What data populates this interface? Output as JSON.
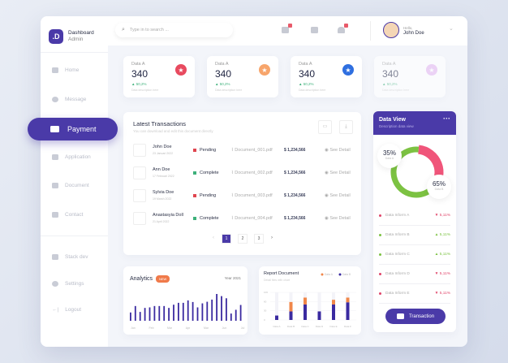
{
  "sidebar": {
    "logo": ".D",
    "title": "Dashboard",
    "subtitle": "Admin",
    "items": [
      {
        "label": "Home",
        "icon": "home-icon"
      },
      {
        "label": "Message",
        "icon": "message-icon"
      },
      {
        "label": "Payment",
        "icon": "payment-icon",
        "active": true
      },
      {
        "label": "Application",
        "icon": "grid-icon"
      },
      {
        "label": "Document",
        "icon": "document-icon"
      },
      {
        "label": "Contact",
        "icon": "contact-icon"
      }
    ],
    "bottom": [
      {
        "label": "Stack dev",
        "icon": "layers-icon"
      },
      {
        "label": "Settings",
        "icon": "gear-icon"
      },
      {
        "label": "Logout",
        "icon": "logout-icon"
      }
    ]
  },
  "header": {
    "search_placeholder": "Type in to search ...",
    "greeting": "Hello,",
    "user": "John Doe"
  },
  "stats": [
    {
      "label": "Data A",
      "value": "340",
      "change": "▲ 50,2%",
      "desc": "Data description here",
      "color": "#e84a5f"
    },
    {
      "label": "Data A",
      "value": "340",
      "change": "▲ 50,2%",
      "desc": "Data description here",
      "color": "#f7a56b"
    },
    {
      "label": "Data A",
      "value": "340",
      "change": "▲ 50,2%",
      "desc": "Data description here",
      "color": "#2f6fe0"
    },
    {
      "label": "Data A",
      "value": "340",
      "change": "▲ 50,2%",
      "desc": "Data description here",
      "color": "#e3b5f0"
    }
  ],
  "transactions": {
    "title": "Latest Transactions",
    "subtitle": "You can download and edit this document directly",
    "rows": [
      {
        "name": "John Doe",
        "date": "23 Januari 2022",
        "status": "Pending",
        "doc": "Document_001.pdf",
        "amount": "$ 1,234,566",
        "action": "See Detail"
      },
      {
        "name": "Ann Doe",
        "date": "17 Februari 2022",
        "status": "Complete",
        "doc": "Document_002.pdf",
        "amount": "$ 1,234,566",
        "action": "See Detail"
      },
      {
        "name": "Sylvia Doe",
        "date": "19 March 2022",
        "status": "Pending",
        "doc": "Document_003.pdf",
        "amount": "$ 1,234,566",
        "action": "See Detail"
      },
      {
        "name": "Anastasyia Doll",
        "date": "21 April 2022",
        "status": "Complete",
        "doc": "Document_004.pdf",
        "amount": "$ 1,234,566",
        "action": "See Detail"
      }
    ],
    "pages": [
      "1",
      "2",
      "3"
    ],
    "current_page": "1"
  },
  "status_colors": {
    "Pending": "#e0454f",
    "Complete": "#3db07a"
  },
  "data_view": {
    "title": "Data View",
    "subtitle": "Description data view",
    "slices": [
      {
        "label": "Data A",
        "percent": 35,
        "text": "35%",
        "color": "#f0557a"
      },
      {
        "label": "Data B",
        "percent": 65,
        "text": "65%",
        "color": "#7cc242"
      }
    ],
    "items": [
      {
        "label": "Data Inform A",
        "value": "▼ 5,11%",
        "color": "#e0456a"
      },
      {
        "label": "Data Inform B",
        "value": "▲ 5,11%",
        "color": "#7cc242"
      },
      {
        "label": "Data Inform C",
        "value": "▲ 5,11%",
        "color": "#7cc242"
      },
      {
        "label": "Data Inform D",
        "value": "▼ 5,11%",
        "color": "#e0456a"
      },
      {
        "label": "Data Inform E",
        "value": "▼ 5,11%",
        "color": "#e0456a"
      }
    ],
    "button": "Transaction"
  },
  "analytics": {
    "title": "Analytics",
    "badge": "NEW",
    "year": "Year 2021",
    "months": [
      "Jan",
      "Feb",
      "Mar",
      "Apr",
      "Mar",
      "Jun",
      "Jul"
    ],
    "values": [
      31,
      55,
      33,
      48,
      50,
      55,
      55,
      55,
      48,
      60,
      67,
      67,
      76,
      70,
      50,
      65,
      71,
      79,
      100,
      92,
      84,
      27,
      41,
      59
    ]
  },
  "chart_data": {
    "type": "bar",
    "title": "Report Document",
    "subtitle": "Detail files with chart",
    "categories": [
      "Data A",
      "Data B",
      "Data C",
      "Data D",
      "Data E",
      "Data F"
    ],
    "yticks": [
      "0",
      "30",
      "60",
      "100"
    ],
    "ylim": [
      0,
      100
    ],
    "series": [
      {
        "name": "Data A",
        "color": "#f0874a",
        "values": [
          0,
          34,
          25,
          0,
          17,
          17
        ]
      },
      {
        "name": "Data B",
        "color": "#3a2aa0",
        "values": [
          16,
          31,
          56,
          31,
          56,
          64
        ]
      }
    ]
  }
}
